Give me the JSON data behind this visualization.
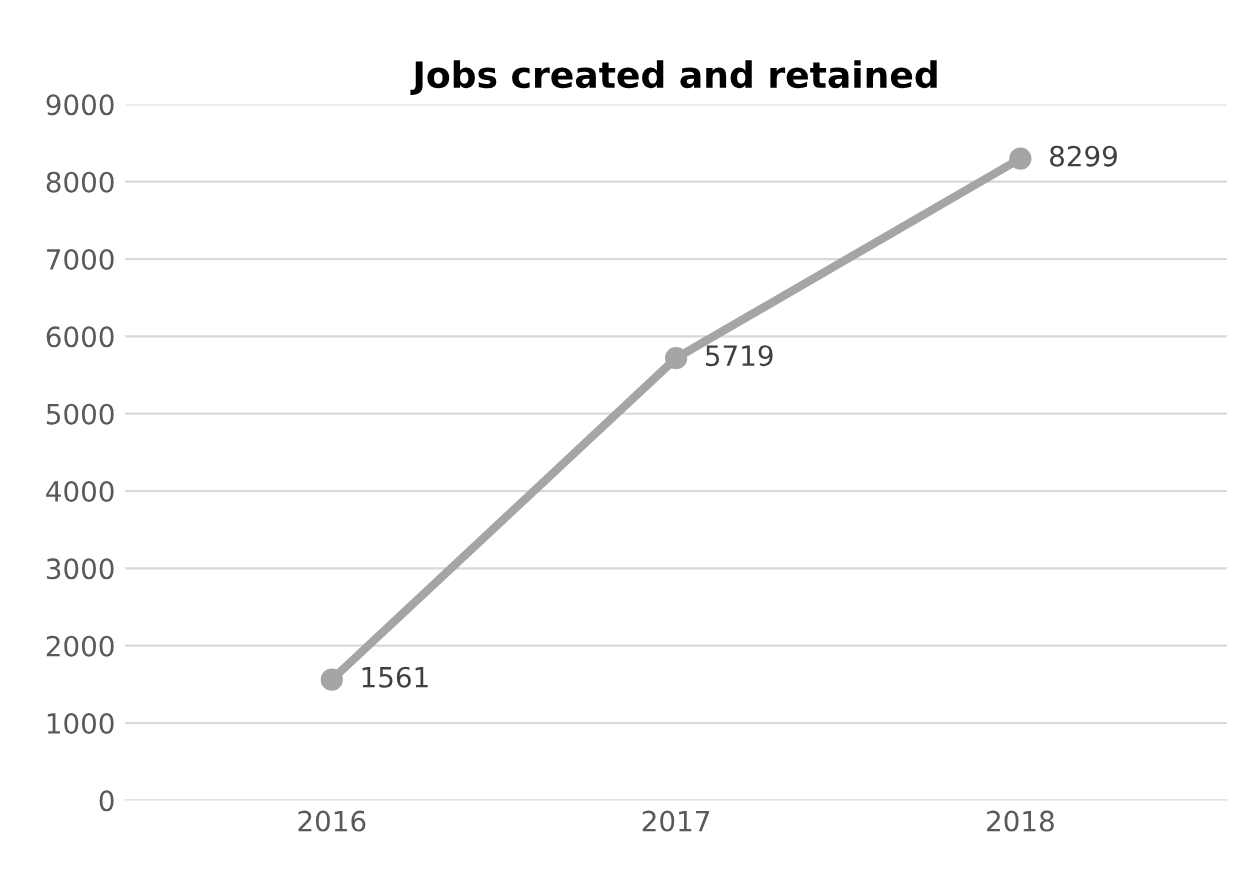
{
  "chart_data": {
    "type": "line",
    "title": "Jobs created and retained",
    "categories": [
      "2016",
      "2017",
      "2018"
    ],
    "series": [
      {
        "color": "#a5a5a5",
        "values": [
          1561,
          5719,
          8299
        ]
      }
    ],
    "ylim": [
      0,
      9000
    ],
    "yticks": [
      0,
      1000,
      2000,
      3000,
      4000,
      5000,
      6000,
      7000,
      8000,
      9000
    ],
    "grid": "y",
    "marker": "circle",
    "line_style": "solid",
    "data_labels": true
  }
}
